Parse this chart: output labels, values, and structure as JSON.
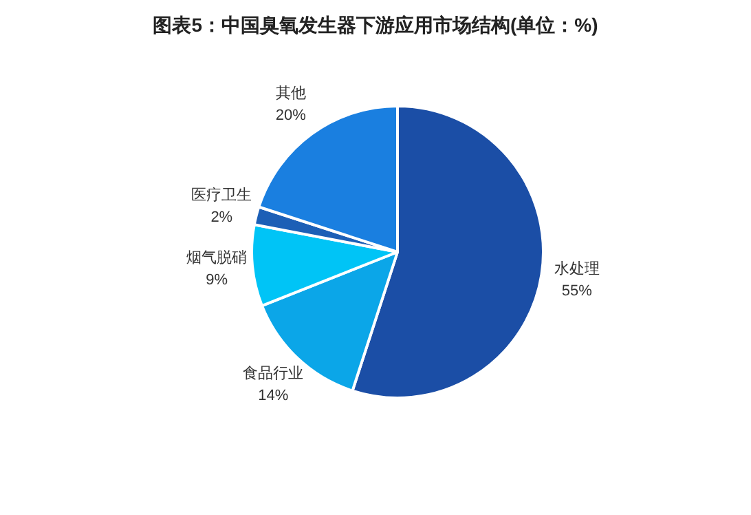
{
  "chart_data": {
    "type": "pie",
    "title": "图表5：中国臭氧发生器下游应用市场结构(单位：%)",
    "categories": [
      "水处理",
      "食品行业",
      "烟气脱硝",
      "医疗卫生",
      "其他"
    ],
    "values": [
      55,
      14,
      9,
      2,
      20
    ],
    "value_labels": [
      "55%",
      "14%",
      "9%",
      "2%",
      "20%"
    ],
    "colors": [
      "#1b4ea6",
      "#0ba6e8",
      "#00c4f6",
      "#1c5fb6",
      "#1a7fe0"
    ],
    "legend": false
  }
}
